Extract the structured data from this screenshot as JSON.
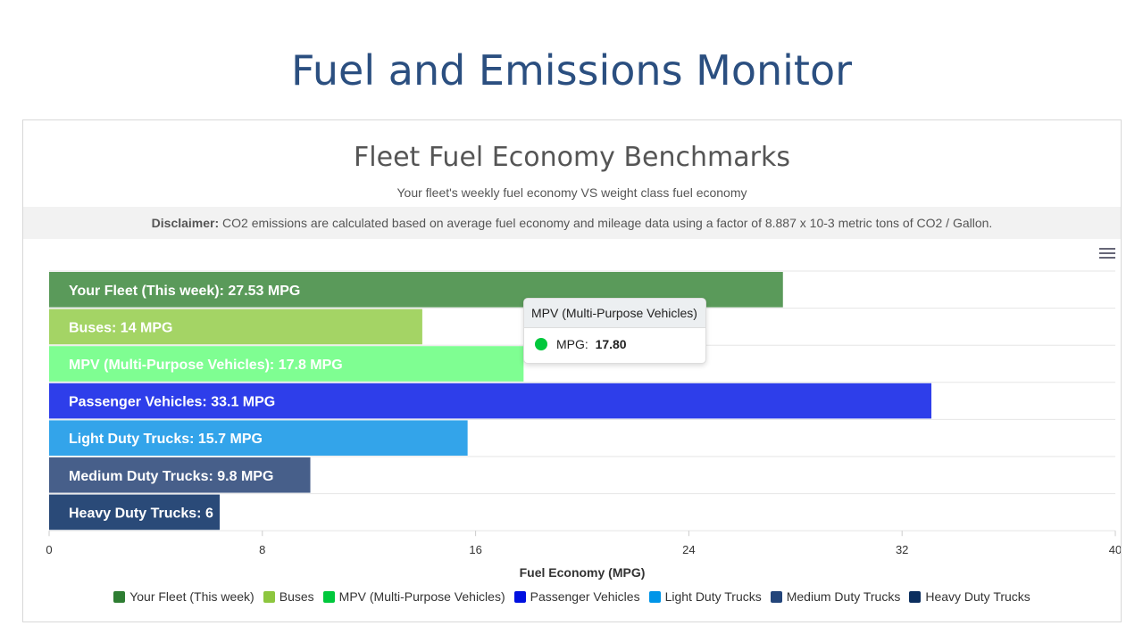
{
  "page_title": "Fuel and Emissions Monitor",
  "chart_data": {
    "type": "bar",
    "orientation": "horizontal",
    "title": "Fleet Fuel Economy Benchmarks",
    "subtitle": "Your fleet's weekly fuel economy VS weight class fuel economy",
    "xlabel": "Fuel Economy (MPG)",
    "xlim": [
      0,
      40
    ],
    "xticks": [
      "0",
      "8",
      "16",
      "24",
      "32",
      "40"
    ],
    "grid": true,
    "legend_position": "bottom",
    "categories": [
      "Your Fleet (This week)",
      "Buses",
      "MPV (Multi-Purpose Vehicles)",
      "Passenger Vehicles",
      "Light Duty Trucks",
      "Medium Duty Trucks",
      "Heavy Duty Trucks"
    ],
    "values": [
      27.53,
      14,
      17.8,
      33.1,
      15.7,
      9.8,
      6.4
    ],
    "data_labels": [
      "Your Fleet (This week): 27.53 MPG",
      "Buses: 14 MPG",
      "MPV (Multi-Purpose Vehicles): 17.8 MPG",
      "Passenger Vehicles: 33.1 MPG",
      "Light Duty Trucks: 15.7 MPG",
      "Medium Duty Trucks: 9.8 MPG",
      "Heavy Duty Trucks: 6"
    ],
    "bar_colors": [
      "#5a9a5a",
      "#a4d465",
      "#7ffe92",
      "#2e3eea",
      "#33a4ea",
      "#475f8a",
      "#2a4a78"
    ],
    "legend_colors": [
      "#2e7d32",
      "#8dc63f",
      "#00c83c",
      "#0010e0",
      "#0095e8",
      "#23457a",
      "#0b2e5e"
    ]
  },
  "disclaimer": {
    "label": "Disclaimer:",
    "text": " CO2 emissions are calculated based on average fuel economy and mileage data using a factor of 8.887 x 10-3 metric tons of CO2 / Gallon."
  },
  "tooltip": {
    "title": "MPV (Multi-Purpose Vehicles)",
    "label": "MPG:",
    "value": "17.80",
    "color": "#00c83c"
  }
}
